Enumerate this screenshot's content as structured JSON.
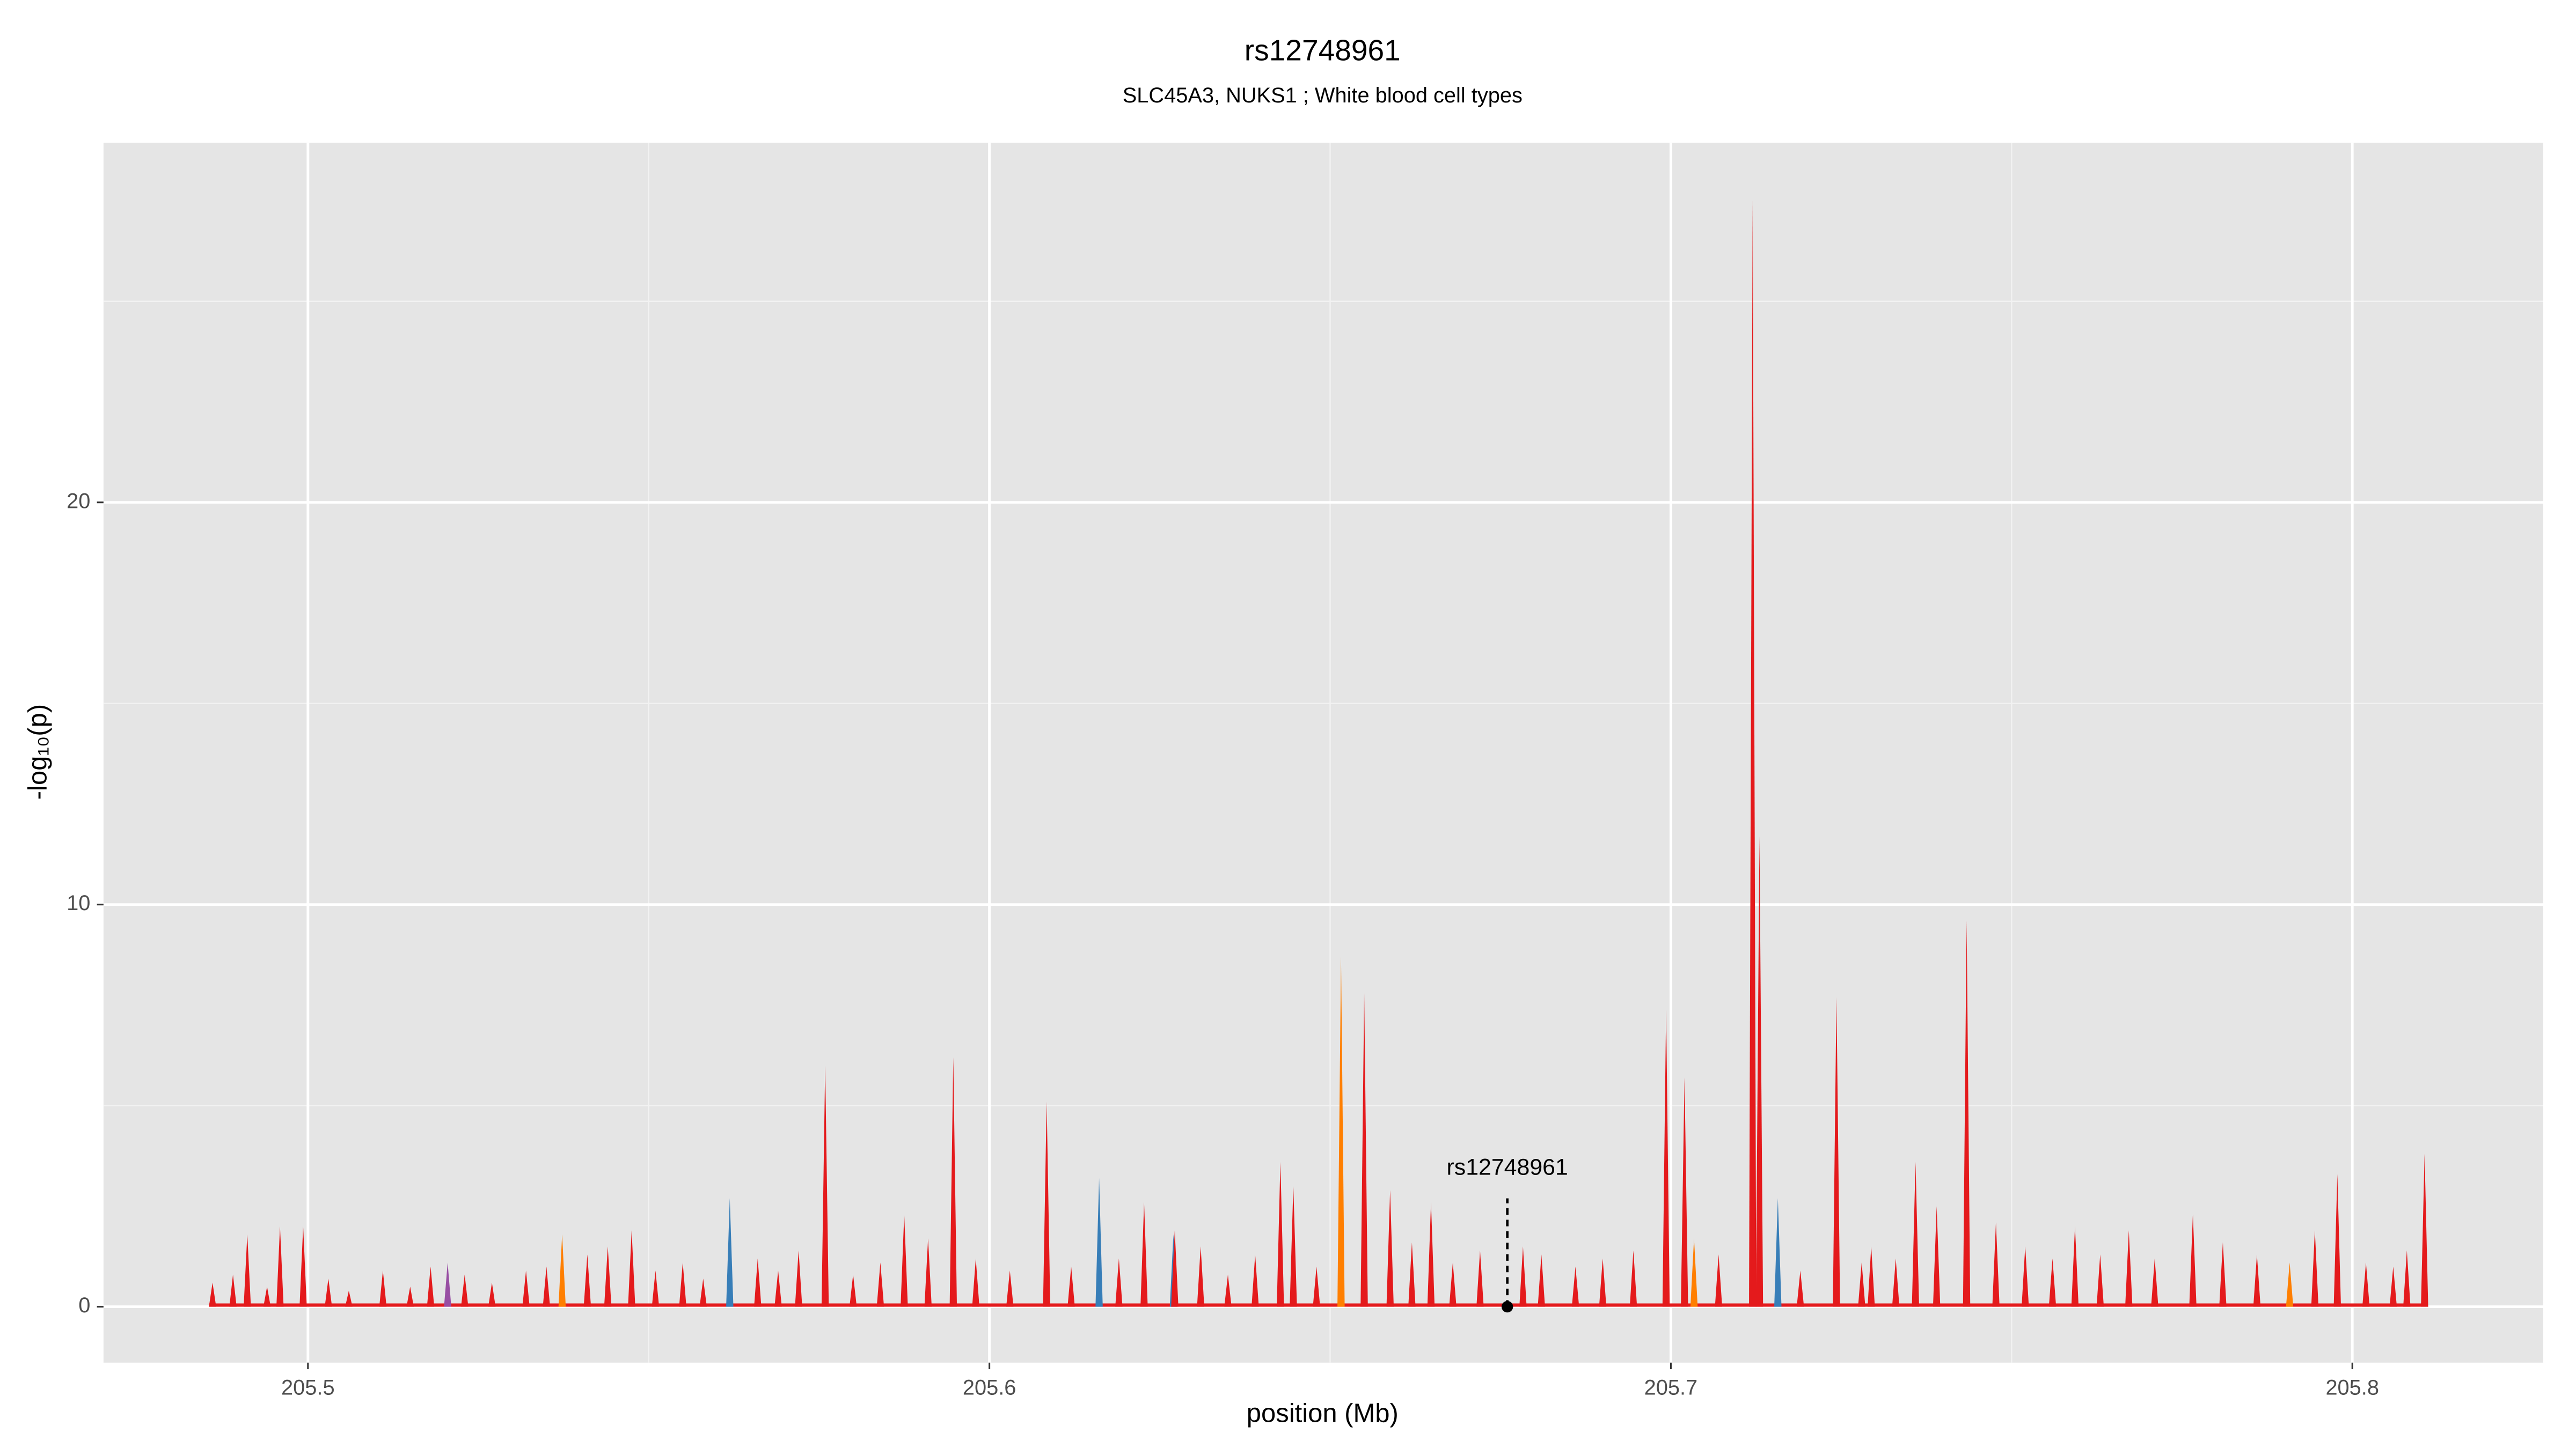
{
  "chart_data": {
    "type": "spike",
    "title": "rs12748961",
    "subtitle": "SLC45A3, NUKS1 ; White blood cell types",
    "x_label": "position (Mb)",
    "y_label": "-log₁₀(p)",
    "xlim": [
      205.47,
      205.828
    ],
    "ylim": [
      -1.39,
      28.94
    ],
    "xticks": [
      205.5,
      205.6,
      205.7,
      205.8
    ],
    "yticks": [
      0,
      10,
      20
    ],
    "grid": true,
    "annotation": {
      "text": "rs12748961",
      "x": 205.676,
      "y": 0
    },
    "series": [
      {
        "color": "#e41a1c",
        "x": [
          205.712,
          205.713,
          205.7434,
          205.655,
          205.7243,
          205.6993,
          205.702,
          205.5947,
          205.5759,
          205.6084,
          205.8106,
          205.7978,
          205.7359,
          205.6427,
          205.6446,
          205.6588,
          205.6648,
          205.6227,
          205.5875,
          205.7766,
          205.4911,
          205.4959,
          205.4993,
          205.5475,
          205.6272,
          205.7477,
          205.7593,
          205.7672,
          205.7945,
          205.672,
          205.6783,
          205.6945,
          205.7294,
          205.486,
          205.489,
          205.494,
          205.503,
          205.506,
          205.511,
          205.515,
          205.518,
          205.523,
          205.527,
          205.532,
          205.535,
          205.541,
          205.544,
          205.551,
          205.555,
          205.558,
          205.566,
          205.569,
          205.572,
          205.58,
          205.584,
          205.591,
          205.598,
          205.603,
          205.612,
          205.619,
          205.631,
          205.635,
          205.639,
          205.648,
          205.662,
          205.668,
          205.681,
          205.686,
          205.69,
          205.707,
          205.719,
          205.728,
          205.733,
          205.739,
          205.752,
          205.756,
          205.763,
          205.771,
          205.781,
          205.786,
          205.802,
          205.806,
          205.808
        ],
        "values": [
          27.5,
          11.7,
          9.6,
          7.8,
          7.7,
          7.4,
          5.7,
          6.2,
          6.0,
          5.1,
          3.8,
          3.3,
          3.6,
          3.6,
          3.0,
          2.9,
          2.6,
          2.6,
          2.3,
          2.3,
          1.8,
          2.0,
          2.0,
          1.9,
          1.9,
          2.1,
          2.0,
          1.9,
          1.9,
          1.4,
          1.5,
          1.4,
          1.5,
          0.6,
          0.8,
          0.5,
          0.7,
          0.4,
          0.9,
          0.5,
          1.0,
          0.8,
          0.6,
          0.9,
          1.0,
          1.3,
          1.5,
          0.9,
          1.1,
          0.7,
          1.2,
          0.9,
          1.4,
          0.8,
          1.1,
          1.7,
          1.2,
          0.9,
          1.0,
          1.2,
          1.5,
          0.8,
          1.3,
          1.0,
          1.6,
          1.1,
          1.3,
          1.0,
          1.2,
          1.3,
          0.9,
          1.1,
          1.2,
          2.5,
          1.5,
          1.2,
          1.3,
          1.2,
          1.6,
          1.3,
          1.1,
          1.0,
          1.4
        ]
      },
      {
        "color": "#ff7f00",
        "x": [
          205.6516,
          205.7034,
          205.5373,
          205.7908
        ],
        "values": [
          8.7,
          1.7,
          1.8,
          1.1
        ]
      },
      {
        "color": "#377eb8",
        "x": [
          205.6161,
          205.5619,
          205.7157,
          205.627
        ],
        "values": [
          3.2,
          2.7,
          2.7,
          1.8
        ]
      },
      {
        "color": "#984ea3",
        "x": [
          205.5205
        ],
        "values": [
          1.1
        ]
      }
    ]
  }
}
